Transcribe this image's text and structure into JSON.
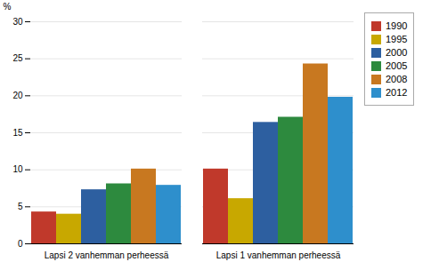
{
  "chart_data": {
    "type": "bar",
    "ylabel": "%",
    "categories": [
      "Lapsi 2 vanhemman perheessä",
      "Lapsi 1 vanhemman perheessä"
    ],
    "series": [
      {
        "name": "1990",
        "color": "#c0392b",
        "values": [
          4.3,
          10.1
        ]
      },
      {
        "name": "1995",
        "color": "#c8a800",
        "values": [
          4.0,
          6.1
        ]
      },
      {
        "name": "2000",
        "color": "#2d5fa0",
        "values": [
          7.3,
          16.4
        ]
      },
      {
        "name": "2005",
        "color": "#2d8a3e",
        "values": [
          8.1,
          17.1
        ]
      },
      {
        "name": "2008",
        "color": "#c87820",
        "values": [
          10.1,
          24.3
        ]
      },
      {
        "name": "2012",
        "color": "#2e8fcc",
        "values": [
          7.9,
          19.8
        ]
      }
    ],
    "ylim": [
      0,
      30
    ],
    "yticks": [
      0,
      5,
      10,
      15,
      20,
      25,
      30
    ],
    "grid": true,
    "legend": "upper right"
  }
}
